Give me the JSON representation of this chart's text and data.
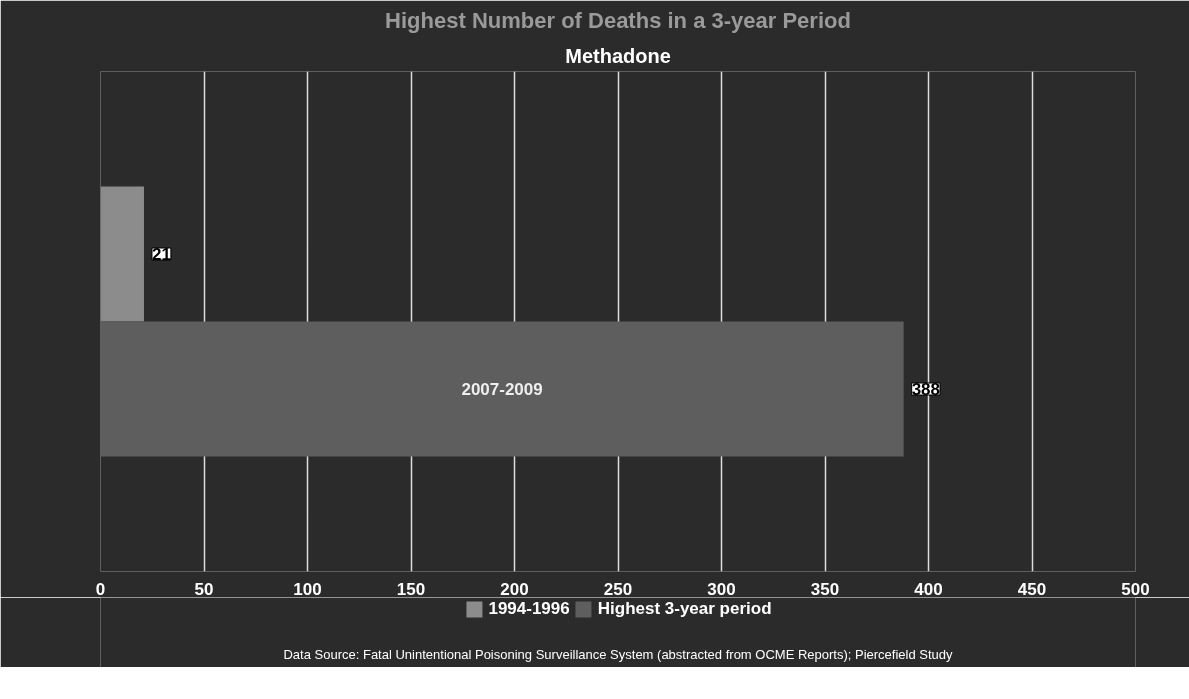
{
  "chart_data": {
    "type": "bar",
    "orientation": "horizontal",
    "title": "Highest Number of Deaths in a 3-year Period",
    "subtitle": "Methadone",
    "categories": [
      null
    ],
    "series": [
      {
        "name": "1994-1996",
        "color": "#8c8c8c",
        "values": [
          21
        ]
      },
      {
        "name": "Highest 3-year period",
        "color": "#5e5e5e",
        "values": [
          388
        ]
      }
    ],
    "xlim": [
      0,
      500
    ],
    "xticks": [
      0,
      50,
      100,
      150,
      200,
      250,
      300,
      350,
      400,
      450,
      500
    ],
    "grid": "x",
    "legend": "bottom",
    "data_labels": true,
    "tick_labels": "x",
    "annotations": [
      "2007-2009",
      "Data Source: Fatal Unintentional Poisoning Surveillance System (abstracted from OCME Reports); Piercefield Study"
    ]
  }
}
